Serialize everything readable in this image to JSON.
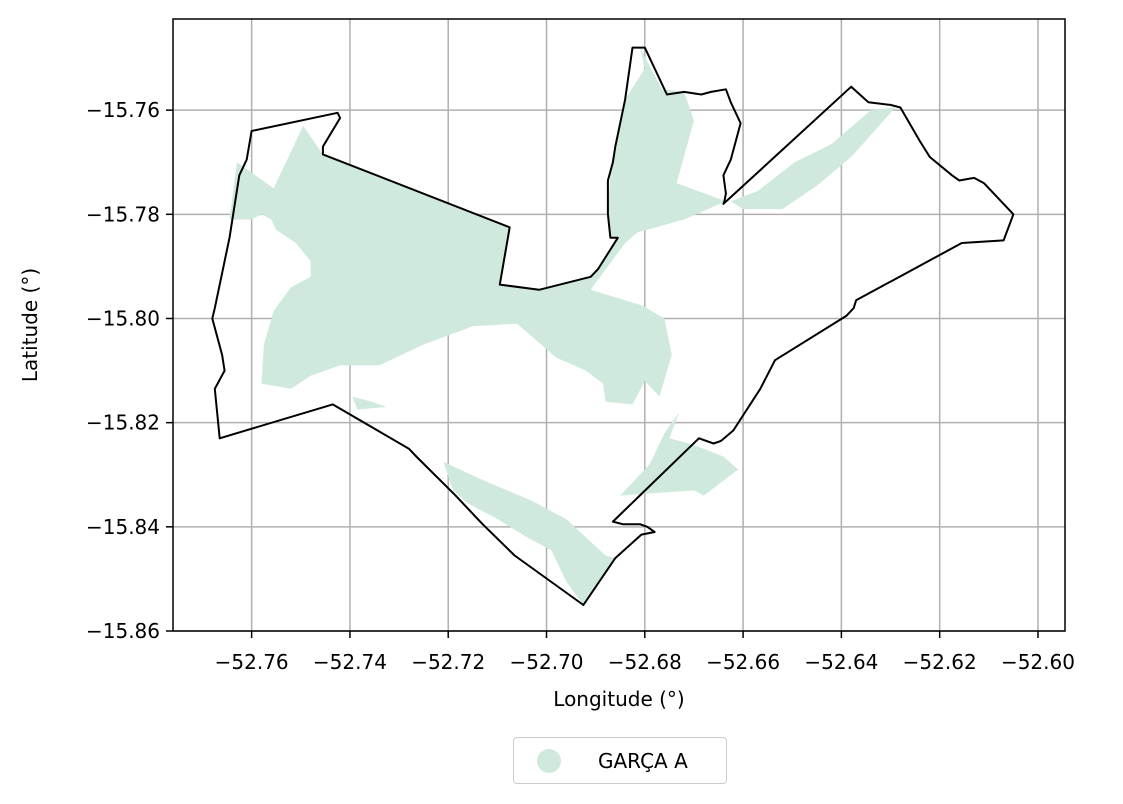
{
  "map": {
    "xlabel": "Longitude (°)",
    "ylabel": "Latitude (°)",
    "x_ticks": [
      -52.76,
      -52.74,
      -52.72,
      -52.7,
      -52.68,
      -52.66,
      -52.64,
      -52.62,
      -52.6
    ],
    "y_ticks": [
      -15.76,
      -15.78,
      -15.8,
      -15.82,
      -15.84,
      -15.86
    ],
    "x_tick_labels": [
      "−52.76",
      "−52.74",
      "−52.72",
      "−52.70",
      "−52.68",
      "−52.66",
      "−52.64",
      "−52.62",
      "−52.60"
    ],
    "y_tick_labels": [
      "−15.76",
      "−15.78",
      "−15.80",
      "−15.82",
      "−15.84",
      "−15.86"
    ],
    "xlim": [
      -52.776,
      -52.5945
    ],
    "ylim": [
      -15.86,
      -15.7425
    ],
    "grid": true,
    "fill_color": "#cfeadd",
    "boundary_color": "#000000",
    "boundary": [
      [
        -52.76,
        -15.764
      ],
      [
        -52.7425,
        -15.7605
      ],
      [
        -52.742,
        -15.7615
      ],
      [
        -52.7455,
        -15.767
      ],
      [
        -52.7455,
        -15.7685
      ],
      [
        -52.7075,
        -15.7825
      ],
      [
        -52.7095,
        -15.7935
      ],
      [
        -52.7015,
        -15.7945
      ],
      [
        -52.691,
        -15.792
      ],
      [
        -52.6895,
        -15.7905
      ],
      [
        -52.6855,
        -15.7845
      ],
      [
        -52.687,
        -15.7845
      ],
      [
        -52.6875,
        -15.78
      ],
      [
        -52.6875,
        -15.776
      ],
      [
        -52.6875,
        -15.7735
      ],
      [
        -52.6865,
        -15.77
      ],
      [
        -52.686,
        -15.767
      ],
      [
        -52.684,
        -15.758
      ],
      [
        -52.6825,
        -15.748
      ],
      [
        -52.68,
        -15.748
      ],
      [
        -52.6755,
        -15.757
      ],
      [
        -52.672,
        -15.7565
      ],
      [
        -52.6685,
        -15.757
      ],
      [
        -52.6665,
        -15.7565
      ],
      [
        -52.6635,
        -15.756
      ],
      [
        -52.6625,
        -15.7585
      ],
      [
        -52.6605,
        -15.7625
      ],
      [
        -52.6625,
        -15.7695
      ],
      [
        -52.664,
        -15.7725
      ],
      [
        -52.6635,
        -15.776
      ],
      [
        -52.6638,
        -15.7775
      ],
      [
        -52.664,
        -15.778
      ],
      [
        -52.638,
        -15.7555
      ],
      [
        -52.6345,
        -15.7585
      ],
      [
        -52.63,
        -15.759
      ],
      [
        -52.628,
        -15.7595
      ],
      [
        -52.624,
        -15.766
      ],
      [
        -52.622,
        -15.769
      ],
      [
        -52.6175,
        -15.7725
      ],
      [
        -52.616,
        -15.7735
      ],
      [
        -52.613,
        -15.773
      ],
      [
        -52.611,
        -15.774
      ],
      [
        -52.605,
        -15.78
      ],
      [
        -52.607,
        -15.785
      ],
      [
        -52.6155,
        -15.7855
      ],
      [
        -52.637,
        -15.7965
      ],
      [
        -52.6375,
        -15.798
      ],
      [
        -52.639,
        -15.7995
      ],
      [
        -52.6535,
        -15.808
      ],
      [
        -52.6565,
        -15.8135
      ],
      [
        -52.662,
        -15.8215
      ],
      [
        -52.6645,
        -15.8235
      ],
      [
        -52.666,
        -15.824
      ],
      [
        -52.669,
        -15.823
      ],
      [
        -52.6865,
        -15.839
      ],
      [
        -52.6845,
        -15.8395
      ],
      [
        -52.681,
        -15.8395
      ],
      [
        -52.6795,
        -15.84
      ],
      [
        -52.678,
        -15.841
      ],
      [
        -52.6807,
        -15.8415
      ],
      [
        -52.686,
        -15.846
      ],
      [
        -52.6925,
        -15.855
      ],
      [
        -52.7065,
        -15.8455
      ],
      [
        -52.713,
        -15.8395
      ],
      [
        -52.7185,
        -15.834
      ],
      [
        -52.7265,
        -15.8265
      ],
      [
        -52.728,
        -15.825
      ],
      [
        -52.7435,
        -15.8165
      ],
      [
        -52.7665,
        -15.823
      ],
      [
        -52.7675,
        -15.8135
      ],
      [
        -52.7655,
        -15.81
      ],
      [
        -52.766,
        -15.807
      ],
      [
        -52.768,
        -15.8
      ],
      [
        -52.7675,
        -15.798
      ],
      [
        -52.7645,
        -15.7845
      ],
      [
        -52.7625,
        -15.7725
      ],
      [
        -52.761,
        -15.7695
      ],
      [
        -52.76,
        -15.764
      ]
    ],
    "fill_regions": [
      [
        [
          -52.763,
          -15.77
        ],
        [
          -52.7555,
          -15.775
        ],
        [
          -52.7495,
          -15.763
        ],
        [
          -52.7455,
          -15.7685
        ],
        [
          -52.7075,
          -15.7825
        ],
        [
          -52.7095,
          -15.7935
        ],
        [
          -52.7015,
          -15.7945
        ],
        [
          -52.691,
          -15.792
        ],
        [
          -52.6895,
          -15.7905
        ],
        [
          -52.6855,
          -15.7845
        ],
        [
          -52.687,
          -15.7845
        ],
        [
          -52.6875,
          -15.78
        ],
        [
          -52.687,
          -15.772
        ],
        [
          -52.684,
          -15.758
        ],
        [
          -52.68,
          -15.752
        ],
        [
          -52.681,
          -15.748
        ],
        [
          -52.6765,
          -15.756
        ],
        [
          -52.672,
          -15.7565
        ],
        [
          -52.67,
          -15.762
        ],
        [
          -52.6735,
          -15.774
        ],
        [
          -52.6635,
          -15.7775
        ],
        [
          -52.672,
          -15.781
        ],
        [
          -52.6815,
          -15.7835
        ],
        [
          -52.684,
          -15.7855
        ],
        [
          -52.691,
          -15.7945
        ],
        [
          -52.6805,
          -15.7975
        ],
        [
          -52.676,
          -15.8
        ],
        [
          -52.6745,
          -15.807
        ],
        [
          -52.677,
          -15.815
        ],
        [
          -52.68,
          -15.812
        ],
        [
          -52.6825,
          -15.8165
        ],
        [
          -52.688,
          -15.816
        ],
        [
          -52.6885,
          -15.8125
        ],
        [
          -52.692,
          -15.81
        ],
        [
          -52.698,
          -15.8075
        ],
        [
          -52.706,
          -15.801
        ],
        [
          -52.715,
          -15.8015
        ],
        [
          -52.725,
          -15.805
        ],
        [
          -52.734,
          -15.809
        ],
        [
          -52.742,
          -15.809
        ],
        [
          -52.748,
          -15.811
        ],
        [
          -52.752,
          -15.8135
        ],
        [
          -52.758,
          -15.8125
        ],
        [
          -52.7575,
          -15.805
        ],
        [
          -52.7555,
          -15.7985
        ],
        [
          -52.752,
          -15.794
        ],
        [
          -52.748,
          -15.792
        ],
        [
          -52.748,
          -15.789
        ],
        [
          -52.751,
          -15.7855
        ],
        [
          -52.755,
          -15.783
        ],
        [
          -52.756,
          -15.781
        ],
        [
          -52.758,
          -15.78
        ],
        [
          -52.76,
          -15.781
        ],
        [
          -52.7645,
          -15.781
        ]
      ],
      [
        [
          -52.6625,
          -15.7775
        ],
        [
          -52.657,
          -15.7755
        ],
        [
          -52.6495,
          -15.77
        ],
        [
          -52.642,
          -15.7665
        ],
        [
          -52.634,
          -15.76
        ],
        [
          -52.629,
          -15.7595
        ],
        [
          -52.638,
          -15.769
        ],
        [
          -52.645,
          -15.7745
        ],
        [
          -52.652,
          -15.779
        ],
        [
          -52.66,
          -15.779
        ]
      ],
      [
        [
          -52.673,
          -15.818
        ],
        [
          -52.675,
          -15.823
        ],
        [
          -52.671,
          -15.824
        ],
        [
          -52.668,
          -15.825
        ],
        [
          -52.664,
          -15.8265
        ],
        [
          -52.661,
          -15.829
        ],
        [
          -52.668,
          -15.834
        ],
        [
          -52.67,
          -15.833
        ],
        [
          -52.685,
          -15.834
        ],
        [
          -52.679,
          -15.828
        ],
        [
          -52.676,
          -15.822
        ]
      ],
      [
        [
          -52.721,
          -15.8275
        ],
        [
          -52.713,
          -15.831
        ],
        [
          -52.703,
          -15.835
        ],
        [
          -52.696,
          -15.8385
        ],
        [
          -52.692,
          -15.842
        ],
        [
          -52.688,
          -15.8455
        ],
        [
          -52.686,
          -15.846
        ],
        [
          -52.6925,
          -15.855
        ],
        [
          -52.696,
          -15.8505
        ],
        [
          -52.699,
          -15.8445
        ],
        [
          -52.704,
          -15.842
        ],
        [
          -52.71,
          -15.8385
        ],
        [
          -52.716,
          -15.8355
        ],
        [
          -52.719,
          -15.833
        ]
      ],
      [
        [
          -52.7395,
          -15.815
        ],
        [
          -52.7355,
          -15.816
        ],
        [
          -52.7325,
          -15.817
        ],
        [
          -52.7385,
          -15.8175
        ]
      ]
    ]
  },
  "legend": {
    "label": "GARÇA A",
    "color": "#cfeadd"
  }
}
